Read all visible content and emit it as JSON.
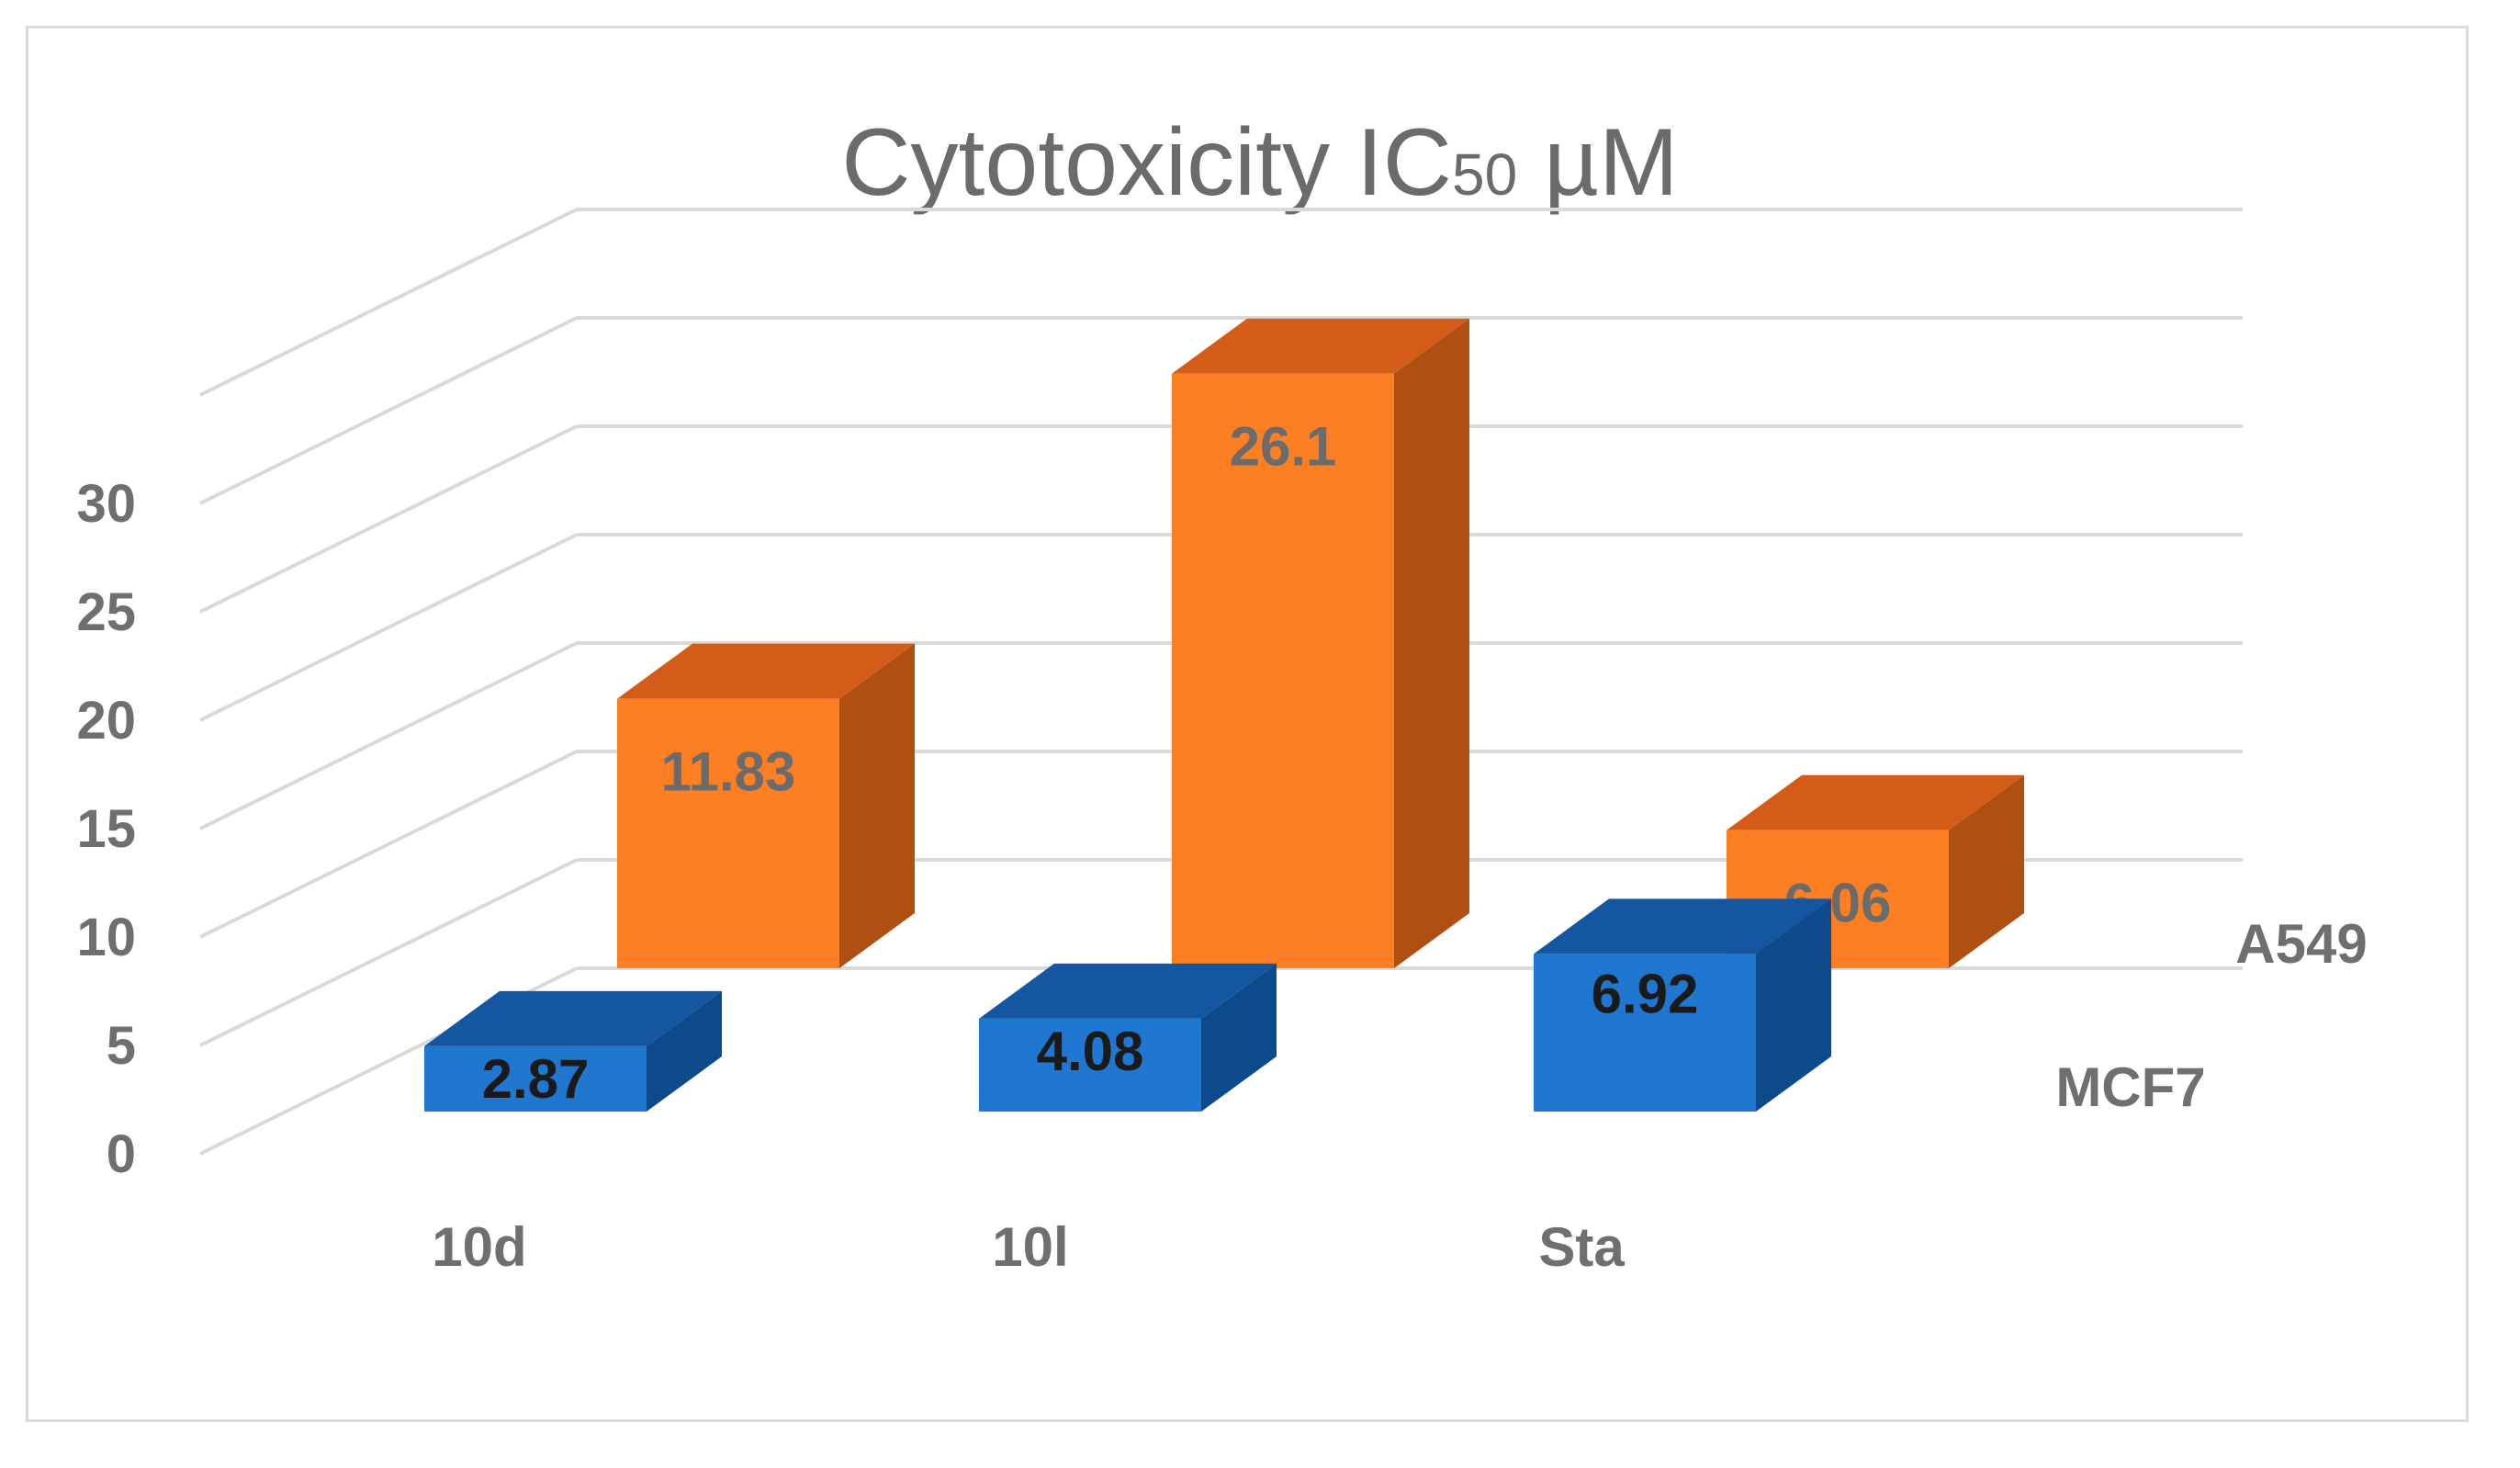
{
  "chart_data": {
    "type": "bar",
    "subtype": "3d-column",
    "title": "Cytotoxicity IC",
    "title_subscript": "50",
    "title_unit": " µM",
    "categories": [
      "10d",
      "10l",
      "Sta"
    ],
    "series": [
      {
        "name": "MCF7",
        "values": [
          2.87,
          4.08,
          6.92
        ],
        "labels": [
          "2.87",
          "4.08",
          "6.92"
        ],
        "color": "#1f77d0",
        "top_color": "#1556a0",
        "side_color": "#0d4a8c"
      },
      {
        "name": "A549",
        "values": [
          11.83,
          26.1,
          6.06
        ],
        "labels": [
          "11.83",
          "26.1",
          "6.06"
        ],
        "color": "#fd7f23",
        "top_color": "#d35d18",
        "side_color": "#b04f12"
      }
    ],
    "yticks": [
      "0",
      "5",
      "10",
      "15",
      "20",
      "25",
      "30"
    ],
    "ylim": [
      0,
      35
    ],
    "grid": true,
    "legend": "series labels at right of depth axis"
  }
}
